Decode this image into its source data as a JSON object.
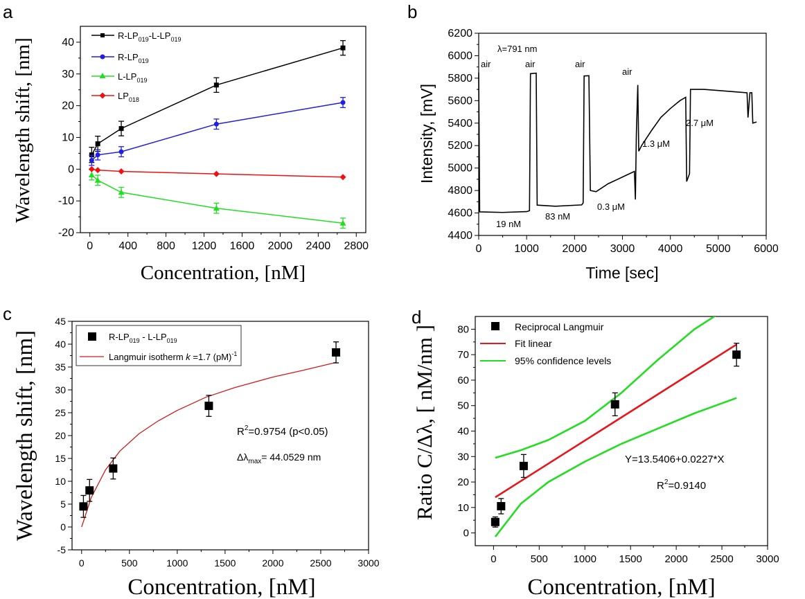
{
  "panels": {
    "a": {
      "letter": "a",
      "ylabel": "Wavelength shift, [nm]",
      "xlabel": "Concentration, [nM]",
      "legend": [
        {
          "main": "R-LP",
          "sub": "019",
          "main2": "-L-LP",
          "sub2": "019"
        },
        {
          "main": "R-LP",
          "sub": "019"
        },
        {
          "main": "L-LP",
          "sub": "019"
        },
        {
          "main": "LP",
          "sub": "018"
        }
      ]
    },
    "b": {
      "letter": "b",
      "ylabel": "Intensity,  [mV]",
      "xlabel": "Time  [sec]",
      "annotations": {
        "lambda": "λ=791 nm",
        "air1": "air",
        "air2": "air",
        "air3": "air",
        "air4": "air",
        "c1": "19 nM",
        "c2": "83 nM",
        "c3": "0.3 μM",
        "c4": "1.3 μM",
        "c5": "2.7 μM"
      }
    },
    "c": {
      "letter": "c",
      "ylabel": "Wavelength shift, [nm]",
      "xlabel": "Concentration, [nM]",
      "legend1": {
        "main": "R-LP",
        "sub": "019",
        "main2": " - L-LP",
        "sub2": "019"
      },
      "legend2": {
        "pre": "Langmuir isotherm ",
        "k": "k",
        "post": " =1.7 (pM)",
        "sup": "-1"
      },
      "r2": {
        "pre": "R",
        "sup": "2",
        "post": "=0.9754 (p<0.05)"
      },
      "dl": {
        "pre": "Δλ",
        "sub": "max",
        "post": "= 44.0529 nm"
      }
    },
    "d": {
      "letter": "d",
      "ylabel": "Ratio C/Δλ, [ nM/nm ]",
      "xlabel": "Concentration, [nM]",
      "legend": [
        "Reciprocal Langmuir",
        "Fit linear",
        "95% confidence levels"
      ],
      "eq": "Y=13.5406+0.0227*X",
      "r2": {
        "pre": "R",
        "sup": "2",
        "post": "=0.9140"
      }
    }
  },
  "chart_data": [
    {
      "panel": "a",
      "type": "line",
      "xlim": [
        -100,
        2900
      ],
      "ylim": [
        -20,
        45
      ],
      "xticks": [
        0,
        400,
        800,
        1200,
        1600,
        2000,
        2400,
        2800
      ],
      "yticks": [
        -20,
        -10,
        0,
        10,
        20,
        30,
        40
      ],
      "x": [
        19,
        83,
        330,
        1330,
        2660
      ],
      "series": [
        {
          "name": "R-LP019-L-LP019",
          "color": "#000000",
          "marker": "square",
          "values": [
            4.5,
            8,
            12.8,
            26.5,
            38.2
          ],
          "err": [
            2.4,
            2.4,
            2.3,
            2.3,
            2.3
          ]
        },
        {
          "name": "R-LP019",
          "color": "#1f1fe0",
          "marker": "circle",
          "values": [
            2.8,
            4.5,
            5.5,
            14.2,
            21
          ],
          "err": [
            1.6,
            1.6,
            1.6,
            1.6,
            1.6
          ]
        },
        {
          "name": "L-LP019",
          "color": "#22dd22",
          "marker": "triangle",
          "values": [
            -1.8,
            -3.5,
            -7.3,
            -12.3,
            -17
          ],
          "err": [
            1.6,
            1.6,
            1.6,
            1.6,
            1.6
          ]
        },
        {
          "name": "LP018",
          "color": "#ee1111",
          "marker": "diamond",
          "values": [
            0,
            -0.3,
            -0.7,
            -1.5,
            -2.5
          ],
          "err": [
            0,
            0,
            0,
            0,
            0
          ]
        }
      ]
    },
    {
      "panel": "b",
      "type": "line",
      "xlim": [
        0,
        6000
      ],
      "ylim": [
        4400,
        6200
      ],
      "xticks": [
        0,
        1000,
        2000,
        3000,
        4000,
        5000,
        6000
      ],
      "yticks": [
        4400,
        4600,
        4800,
        5000,
        5200,
        5400,
        5600,
        5800,
        6000,
        6200
      ],
      "series": [
        {
          "name": "",
          "color": "#000000",
          "points": [
            [
              0,
              5850
            ],
            [
              20,
              4610
            ],
            [
              500,
              4605
            ],
            [
              1000,
              4612
            ],
            [
              1060,
              4620
            ],
            [
              1080,
              5840
            ],
            [
              1200,
              5845
            ],
            [
              1220,
              4670
            ],
            [
              1600,
              4660
            ],
            [
              2150,
              4672
            ],
            [
              2180,
              4690
            ],
            [
              2200,
              5820
            ],
            [
              2300,
              5822
            ],
            [
              2330,
              4800
            ],
            [
              2450,
              4790
            ],
            [
              2700,
              4860
            ],
            [
              3000,
              4920
            ],
            [
              3250,
              4970
            ],
            [
              3270,
              4720
            ],
            [
              3290,
              5300
            ],
            [
              3320,
              5740
            ],
            [
              3340,
              5150
            ],
            [
              3400,
              5200
            ],
            [
              3600,
              5330
            ],
            [
              3800,
              5450
            ],
            [
              4000,
              5530
            ],
            [
              4200,
              5600
            ],
            [
              4320,
              5630
            ],
            [
              4340,
              4880
            ],
            [
              4400,
              4950
            ],
            [
              4420,
              5700
            ],
            [
              4700,
              5700
            ],
            [
              5000,
              5690
            ],
            [
              5300,
              5680
            ],
            [
              5600,
              5670
            ],
            [
              5620,
              5450
            ],
            [
              5660,
              5670
            ],
            [
              5700,
              5670
            ],
            [
              5720,
              5400
            ],
            [
              5800,
              5410
            ]
          ]
        }
      ]
    },
    {
      "panel": "c",
      "type": "scatter",
      "xlim": [
        -100,
        3000
      ],
      "ylim": [
        -5,
        45
      ],
      "xticks": [
        0,
        500,
        1000,
        1500,
        2000,
        2500,
        3000
      ],
      "yticks": [
        -5,
        0,
        5,
        10,
        15,
        20,
        25,
        30,
        35,
        40,
        45
      ],
      "series": [
        {
          "name": "R-LP019 - L-LP019",
          "color": "#000000",
          "x": [
            19,
            83,
            330,
            1330,
            2660
          ],
          "values": [
            4.5,
            8,
            12.8,
            26.5,
            38.2
          ],
          "err": [
            2.4,
            2.4,
            2.3,
            2.3,
            2.3
          ]
        },
        {
          "name": "Langmuir isotherm k =1.7 (pM)-1",
          "color": "#d11a1a",
          "type": "line",
          "x": [
            0,
            100,
            250,
            400,
            600,
            800,
            1000,
            1300,
            1600,
            2000,
            2300,
            2660
          ],
          "values": [
            0,
            6.4,
            12.5,
            16.6,
            20.4,
            23.2,
            25.5,
            28.4,
            30.5,
            32.8,
            34.2,
            36
          ]
        }
      ]
    },
    {
      "panel": "d",
      "type": "scatter",
      "xlim": [
        -200,
        3000
      ],
      "ylim": [
        -5,
        85
      ],
      "xticks": [
        0,
        500,
        1000,
        1500,
        2000,
        2500,
        3000
      ],
      "yticks": [
        0,
        10,
        20,
        30,
        40,
        50,
        60,
        70,
        80
      ],
      "series": [
        {
          "name": "Reciprocal Langmuir",
          "color": "#000000",
          "x": [
            19,
            83,
            330,
            1330,
            2660
          ],
          "values": [
            4.3,
            10.5,
            26.3,
            50.5,
            70
          ],
          "err": [
            2,
            3,
            4.5,
            4.5,
            4.5
          ]
        },
        {
          "name": "Fit linear",
          "color": "#e8151b",
          "type": "line",
          "x": [
            19,
            2660
          ],
          "values": [
            14,
            74
          ]
        },
        {
          "name": "95% confidence levels",
          "color": "#22dd22",
          "type": "line",
          "x": [
            19,
            300,
            600,
            1000,
            1400,
            1800,
            2200,
            2460
          ],
          "values": [
            29.5,
            32.5,
            36.5,
            44,
            55,
            68,
            80,
            86
          ]
        },
        {
          "name": "95% confidence levels",
          "color": "#22dd22",
          "type": "line",
          "x": [
            19,
            300,
            600,
            1000,
            1400,
            1800,
            2200,
            2660
          ],
          "values": [
            -1.5,
            11.5,
            20,
            28,
            35,
            41,
            47,
            53
          ]
        }
      ]
    }
  ]
}
